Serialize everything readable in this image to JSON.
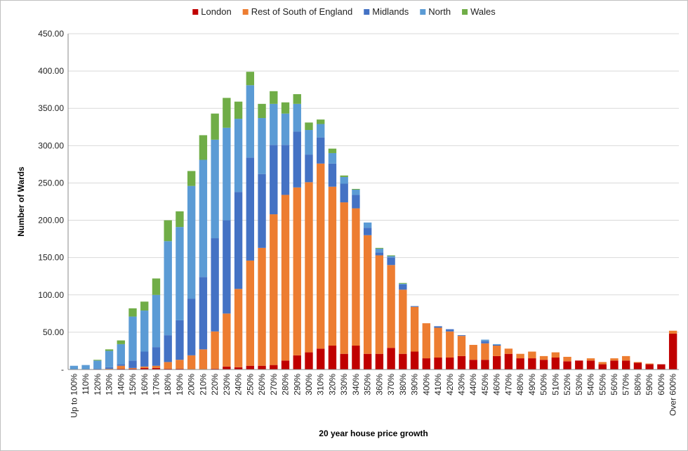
{
  "chart_data": {
    "type": "bar",
    "stacked": true,
    "xlabel": "20 year house price growth",
    "ylabel": "Number of Wards",
    "ylim": [
      0,
      450
    ],
    "yticks": [
      0,
      50,
      100,
      150,
      200,
      250,
      300,
      350,
      400,
      450
    ],
    "ytick_labels": [
      "-",
      "50.00",
      "100.00",
      "150.00",
      "200.00",
      "250.00",
      "300.00",
      "350.00",
      "400.00",
      "450.00"
    ],
    "grid": true,
    "legend_position": "top",
    "categories": [
      "Up to 100%",
      "110%",
      "120%",
      "130%",
      "140%",
      "150%",
      "160%",
      "170%",
      "180%",
      "190%",
      "200%",
      "210%",
      "220%",
      "230%",
      "240%",
      "250%",
      "260%",
      "270%",
      "280%",
      "290%",
      "300%",
      "310%",
      "320%",
      "330%",
      "340%",
      "350%",
      "360%",
      "370%",
      "380%",
      "390%",
      "400%",
      "410%",
      "420%",
      "430%",
      "440%",
      "450%",
      "460%",
      "470%",
      "480%",
      "490%",
      "500%",
      "510%",
      "520%",
      "530%",
      "540%",
      "550%",
      "560%",
      "570%",
      "580%",
      "590%",
      "600%",
      "Over 600%"
    ],
    "series": [
      {
        "name": "London",
        "color": "#c00000",
        "values": [
          0,
          0,
          0,
          0,
          1,
          1,
          2,
          2,
          1,
          1,
          0,
          0,
          1,
          4,
          3,
          5,
          5,
          6,
          12,
          19,
          23,
          28,
          32,
          21,
          32,
          21,
          21,
          29,
          21,
          24,
          15,
          16,
          16,
          18,
          13,
          13,
          18,
          21,
          15,
          15,
          13,
          16,
          11,
          12,
          12,
          7,
          12,
          12,
          9,
          7,
          7,
          48
        ]
      },
      {
        "name": "Rest of South of England",
        "color": "#ed7d31",
        "values": [
          0,
          0,
          0,
          1,
          4,
          1,
          2,
          3,
          9,
          12,
          19,
          27,
          50,
          71,
          105,
          141,
          158,
          202,
          222,
          225,
          228,
          248,
          213,
          203,
          184,
          159,
          132,
          111,
          86,
          60,
          47,
          40,
          35,
          27,
          20,
          22,
          14,
          7,
          6,
          9,
          5,
          7,
          6,
          0,
          3,
          3,
          3,
          6,
          1,
          1,
          0,
          4
        ]
      },
      {
        "name": "Midlands",
        "color": "#4472c4",
        "values": [
          0,
          0,
          1,
          2,
          2,
          10,
          20,
          25,
          36,
          53,
          76,
          97,
          125,
          125,
          130,
          138,
          99,
          93,
          67,
          75,
          37,
          35,
          31,
          25,
          18,
          10,
          4,
          10,
          7,
          1,
          0,
          2,
          3,
          1,
          0,
          3,
          1,
          0,
          0,
          0,
          0,
          0,
          0,
          0,
          0,
          0,
          0,
          0,
          0,
          0,
          0,
          0
        ]
      },
      {
        "name": "North",
        "color": "#5b9bd5",
        "values": [
          5,
          6,
          11,
          22,
          27,
          59,
          55,
          70,
          126,
          125,
          151,
          157,
          132,
          124,
          98,
          97,
          75,
          55,
          42,
          37,
          33,
          18,
          14,
          9,
          7,
          7,
          5,
          2,
          1,
          0,
          0,
          0,
          0,
          0,
          0,
          2,
          1,
          0,
          0,
          0,
          0,
          0,
          0,
          0,
          0,
          0,
          0,
          0,
          0,
          0,
          0,
          0
        ]
      },
      {
        "name": "Wales",
        "color": "#70ad47",
        "values": [
          0,
          0,
          1,
          2,
          5,
          11,
          12,
          22,
          28,
          21,
          20,
          33,
          35,
          40,
          23,
          18,
          19,
          17,
          15,
          13,
          10,
          6,
          6,
          2,
          1,
          0,
          1,
          1,
          1,
          0,
          0,
          0,
          0,
          0,
          0,
          0,
          0,
          0,
          0,
          0,
          0,
          0,
          0,
          0,
          0,
          0,
          0,
          0,
          0,
          0,
          0,
          0
        ]
      }
    ]
  }
}
